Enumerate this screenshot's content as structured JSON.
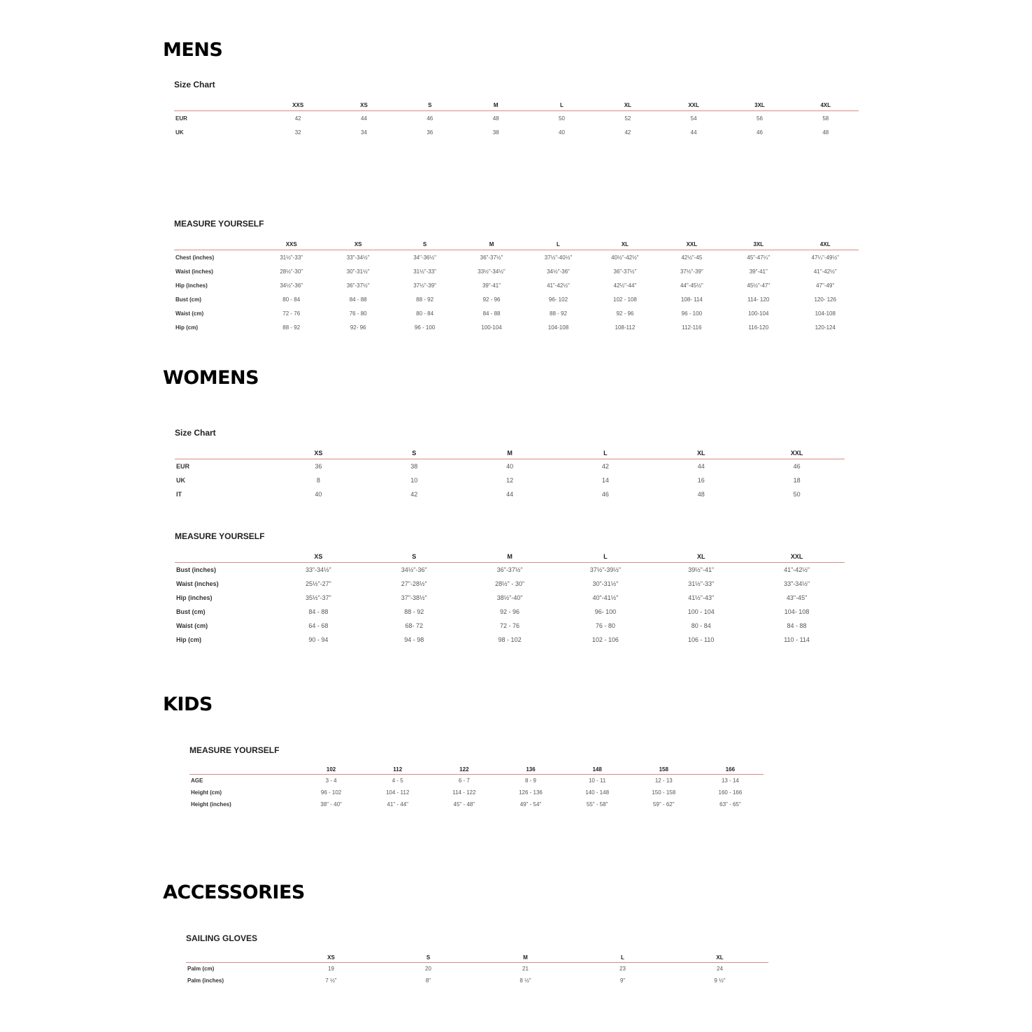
{
  "sections": [
    {
      "heading": "MENS",
      "tables": [
        {
          "title": "Size Chart",
          "columns": [
            "",
            "XXS",
            "XS",
            "S",
            "M",
            "L",
            "XL",
            "XXL",
            "3XL",
            "4XL"
          ],
          "rows": [
            [
              "EUR",
              "42",
              "44",
              "46",
              "48",
              "50",
              "52",
              "54",
              "56",
              "58"
            ],
            [
              "UK",
              "32",
              "34",
              "36",
              "38",
              "40",
              "42",
              "44",
              "46",
              "48"
            ]
          ]
        },
        {
          "title": "MEASURE YOURSELF",
          "columns": [
            "",
            "XXS",
            "XS",
            "S",
            "M",
            "L",
            "XL",
            "XXL",
            "3XL",
            "4XL"
          ],
          "rows": [
            [
              "Chest (inches)",
              "31½\"-33\"",
              "33\"-34½\"",
              "34\"-36½\"",
              "36\"-37½\"",
              "37½\"-40½\"",
              "40½\"-42½\"",
              "42½\"-45",
              "45\"-47¼\"",
              "47¼\"-49½\""
            ],
            [
              "Waist (inches)",
              "28½\"-30\"",
              "30\"-31½\"",
              "31½\"-33\"",
              "33½\"-34½\"",
              "34½\"-36\"",
              "36\"-37½\"",
              "37½\"-39\"",
              "39\"-41\"",
              "41\"-42½\""
            ],
            [
              "Hip (inches)",
              "34½\"-36\"",
              "36\"-37½\"",
              "37½\"-39\"",
              "39\"-41\"",
              "41\"-42½\"",
              "42½\"-44\"",
              "44\"-45½\"",
              "45½\"-47\"",
              "47\"-49\""
            ],
            [
              "Bust (cm)",
              "80 - 84",
              "84 - 88",
              "88 - 92",
              "92 - 96",
              "96- 102",
              "102 - 108",
              "108- 114",
              "114- 120",
              "120- 126"
            ],
            [
              "Waist (cm)",
              "72 - 76",
              "76 - 80",
              "80 - 84",
              "84 - 88",
              "88 - 92",
              "92 - 96",
              "96 - 100",
              "100-104",
              "104-108"
            ],
            [
              "Hip (cm)",
              "88 - 92",
              "92- 96",
              "96 - 100",
              "100-104",
              "104-108",
              "108-112",
              "112-116",
              "116-120",
              "120-124"
            ]
          ]
        }
      ]
    },
    {
      "heading": "WOMENS",
      "tables": [
        {
          "title": "Size Chart",
          "columns": [
            "",
            "XS",
            "S",
            "M",
            "L",
            "XL",
            "XXL"
          ],
          "rows": [
            [
              "EUR",
              "36",
              "38",
              "40",
              "42",
              "44",
              "46"
            ],
            [
              "UK",
              "8",
              "10",
              "12",
              "14",
              "16",
              "18"
            ],
            [
              "IT",
              "40",
              "42",
              "44",
              "46",
              "48",
              "50"
            ]
          ]
        },
        {
          "title": "MEASURE YOURSELF",
          "columns": [
            "",
            "XS",
            "S",
            "M",
            "L",
            "XL",
            "XXL"
          ],
          "rows": [
            [
              "Bust (inches)",
              "33\"-34½\"",
              "34½\"-36\"",
              "36\"-37½\"",
              "37½\"-39½\"",
              "39½\"-41\"",
              "41\"-42½\""
            ],
            [
              "Waist (inches)",
              "25½\"-27\"",
              "27\"-28½\"",
              "28½\" - 30\"",
              "30\"-31½\"",
              "31½\"-33\"",
              "33\"-34½\""
            ],
            [
              "Hip (inches)",
              "35½\"-37\"",
              "37\"-38½\"",
              "38½\"-40\"",
              "40\"-41½\"",
              "41½\"-43\"",
              "43\"-45\""
            ],
            [
              "Bust (cm)",
              "84 - 88",
              "88 - 92",
              "92 - 96",
              "96- 100",
              "100 - 104",
              "104- 108"
            ],
            [
              "Waist (cm)",
              "64 - 68",
              "68- 72",
              "72 - 76",
              "76 - 80",
              "80 - 84",
              "84 - 88"
            ],
            [
              "Hip (cm)",
              "90 - 94",
              "94 - 98",
              "98 - 102",
              "102 - 106",
              "106 - 110",
              "110 - 114"
            ]
          ]
        }
      ]
    },
    {
      "heading": "KIDS",
      "tables": [
        {
          "title": "MEASURE YOURSELF",
          "columns": [
            "",
            "102",
            "112",
            "122",
            "136",
            "148",
            "158",
            "166"
          ],
          "rows": [
            [
              "AGE",
              "3 - 4",
              "4 - 5",
              "6 - 7",
              "8 - 9",
              "10 - 11",
              "12 - 13",
              "13 - 14"
            ],
            [
              "Height (cm)",
              "96 - 102",
              "104 - 112",
              "114 - 122",
              "126 - 136",
              "140 - 148",
              "150 - 158",
              "160 - 166"
            ],
            [
              "Height (inches)",
              "38\" - 40\"",
              "41\" - 44\"",
              "45\" - 48\"",
              "49\" - 54\"",
              "55\" - 58\"",
              "59\" - 62\"",
              "63\" - 65\""
            ]
          ]
        }
      ]
    },
    {
      "heading": "ACCESSORIES",
      "tables": [
        {
          "title": "SAILING GLOVES",
          "columns": [
            "",
            "XS",
            "S",
            "M",
            "L",
            "XL"
          ],
          "rows": [
            [
              "Palm (cm)",
              "19",
              "20",
              "21",
              "23",
              "24"
            ],
            [
              "Palm (inches)",
              "7 ½\"",
              "8\"",
              "8 ½\"",
              "9\"",
              "9 ½\""
            ]
          ]
        }
      ]
    }
  ]
}
